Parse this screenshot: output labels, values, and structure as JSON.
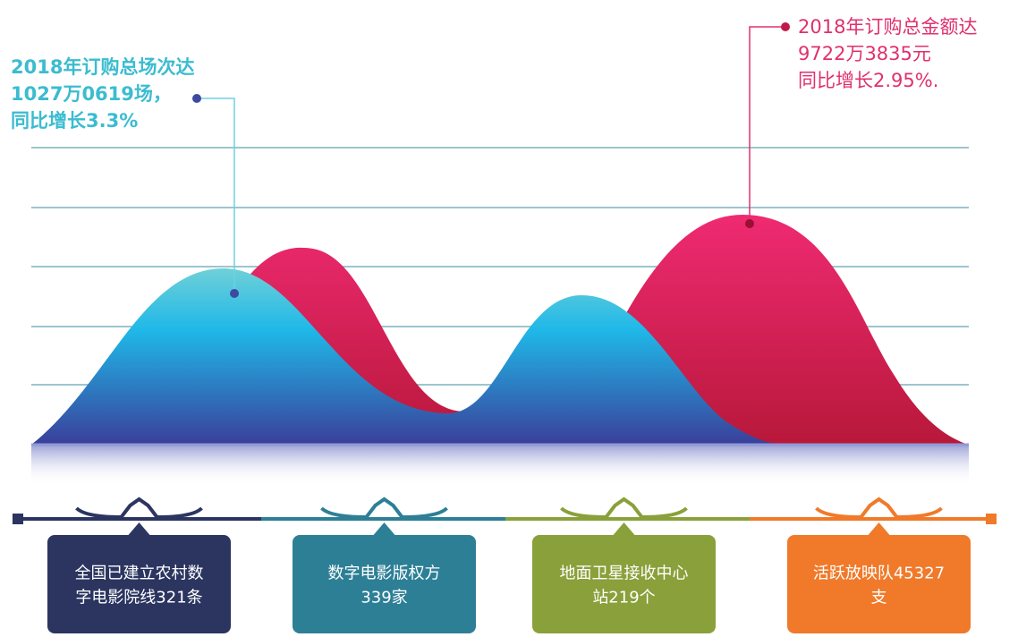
{
  "annotations": {
    "left": [
      "2018年订购总场次达",
      "1027万0619场，",
      "同比增长3.3%"
    ],
    "right": [
      "2018年订购总金额达",
      "9722万3835元",
      "同比增长2.95%."
    ]
  },
  "boxes": [
    {
      "lines": [
        "全国已建立农村数",
        "字电影院线321条"
      ]
    },
    {
      "lines": [
        "数字电影版权方",
        "339家"
      ]
    },
    {
      "lines": [
        "地面卫星接收中心",
        "站219个"
      ]
    },
    {
      "lines": [
        "活跃放映队45327",
        "支"
      ]
    }
  ]
}
